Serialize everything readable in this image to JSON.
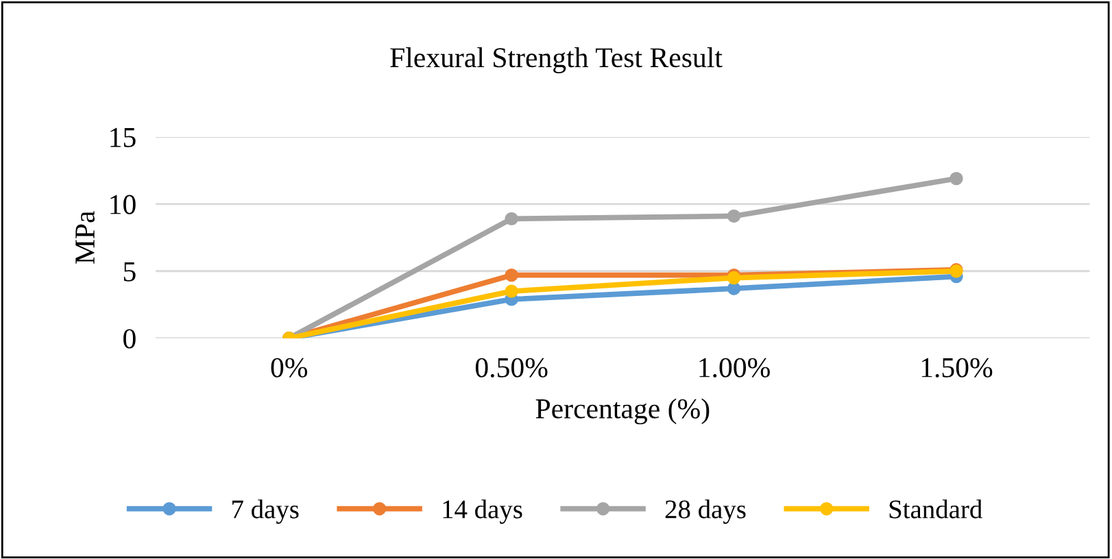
{
  "chart_data": {
    "type": "line",
    "title": "Flexural Strength Test Result",
    "xlabel": "Percentage (%)",
    "ylabel": "MPa",
    "categories": [
      "0%",
      "0.50%",
      "1.00%",
      "1.50%"
    ],
    "series": [
      {
        "name": "7 days",
        "color": "#5b9bd5",
        "values": [
          0,
          2.9,
          3.7,
          4.6
        ]
      },
      {
        "name": "14 days",
        "color": "#ed7d31",
        "values": [
          0,
          4.7,
          4.7,
          5.1
        ]
      },
      {
        "name": "28 days",
        "color": "#a5a5a5",
        "values": [
          0,
          8.9,
          9.1,
          11.9
        ]
      },
      {
        "name": "Standard",
        "color": "#ffc000",
        "values": [
          0,
          3.5,
          4.5,
          5.0
        ]
      }
    ],
    "ylim": [
      0,
      15
    ],
    "yticks": [
      0,
      5,
      10,
      15
    ],
    "grid": "y",
    "legend": "bottom",
    "marker": "circle",
    "line_style": "solid"
  }
}
